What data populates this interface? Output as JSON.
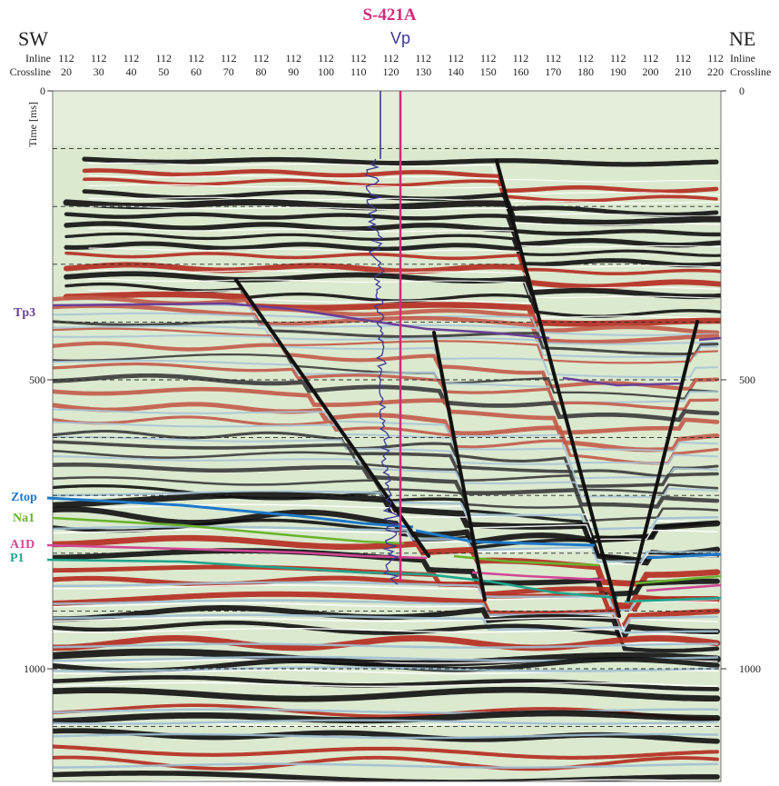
{
  "well": {
    "name": "S-421A",
    "log": "Vp",
    "name_color": "#d6297a",
    "log_color": "#3c3893"
  },
  "directions": {
    "left": "SW",
    "right": "NE"
  },
  "headers": {
    "inline_label": "Inline",
    "crossline_label": "Crossline",
    "inline": [
      "112",
      "112",
      "112",
      "112",
      "112",
      "112",
      "112",
      "112",
      "112",
      "112",
      "112",
      "112",
      "112",
      "112",
      "112",
      "112",
      "112",
      "112",
      "112",
      "112",
      "112"
    ],
    "crossline": [
      "20",
      "30",
      "40",
      "50",
      "60",
      "70",
      "80",
      "90",
      "100",
      "110",
      "120",
      "130",
      "140",
      "150",
      "160",
      "170",
      "180",
      "190",
      "200",
      "210",
      "220"
    ]
  },
  "time_axis": {
    "title": "Time [ms]",
    "left_ticks": [
      "0",
      "500",
      "1000"
    ],
    "right_ticks": [
      "0",
      "500",
      "1000"
    ],
    "tick_values": [
      0,
      500,
      1000
    ],
    "gridline_interval_ms": 100,
    "range": [
      0,
      1200
    ]
  },
  "horizons": [
    {
      "name": "Tp3",
      "color": "#6a3f97"
    },
    {
      "name": "Ztop",
      "color": "#1e78c8"
    },
    {
      "name": "Na1",
      "color": "#6ab42d"
    },
    {
      "name": "A1D",
      "color": "#d24696"
    },
    {
      "name": "P1",
      "color": "#1ea58c"
    }
  ],
  "colors": {
    "trough": "#101010",
    "peak": "#b42a1e",
    "background": "#dbe9cf",
    "fault": "#111111"
  }
}
